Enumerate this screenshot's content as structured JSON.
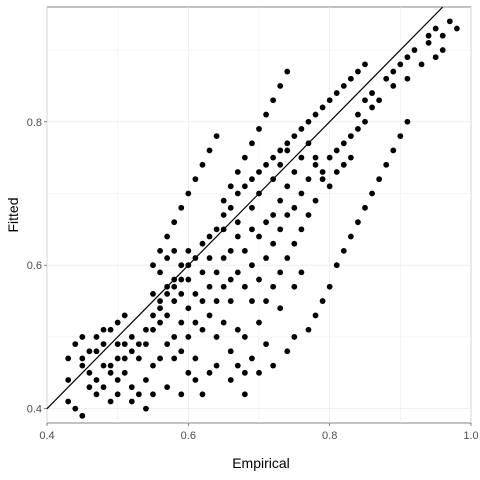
{
  "chart_data": {
    "type": "scatter",
    "xlabel": "Empirical",
    "ylabel": "Fitted",
    "xlim": [
      0.4,
      1.0
    ],
    "ylim": [
      0.38,
      0.96
    ],
    "x_ticks": [
      0.4,
      0.6,
      0.8,
      1.0
    ],
    "x_tick_labels": [
      "0.4",
      "0.6",
      "0.8",
      "1.0"
    ],
    "y_ticks": [
      0.4,
      0.6,
      0.8
    ],
    "y_tick_labels": [
      "0.4",
      "0.6",
      "0.8"
    ],
    "grid": true,
    "reference_line": {
      "type": "identity",
      "slope": 1,
      "intercept": 0
    },
    "point_color": "#000000",
    "points": [
      [
        0.43,
        0.41
      ],
      [
        0.44,
        0.4
      ],
      [
        0.45,
        0.39
      ],
      [
        0.43,
        0.44
      ],
      [
        0.45,
        0.47
      ],
      [
        0.46,
        0.43
      ],
      [
        0.47,
        0.42
      ],
      [
        0.48,
        0.43
      ],
      [
        0.49,
        0.41
      ],
      [
        0.43,
        0.47
      ],
      [
        0.44,
        0.49
      ],
      [
        0.45,
        0.5
      ],
      [
        0.46,
        0.48
      ],
      [
        0.47,
        0.5
      ],
      [
        0.48,
        0.49
      ],
      [
        0.49,
        0.51
      ],
      [
        0.5,
        0.52
      ],
      [
        0.48,
        0.51
      ],
      [
        0.47,
        0.48
      ],
      [
        0.45,
        0.46
      ],
      [
        0.5,
        0.47
      ],
      [
        0.51,
        0.45
      ],
      [
        0.51,
        0.49
      ],
      [
        0.5,
        0.44
      ],
      [
        0.49,
        0.46
      ],
      [
        0.51,
        0.53
      ],
      [
        0.52,
        0.5
      ],
      [
        0.52,
        0.43
      ],
      [
        0.53,
        0.42
      ],
      [
        0.53,
        0.47
      ],
      [
        0.54,
        0.44
      ],
      [
        0.54,
        0.49
      ],
      [
        0.55,
        0.51
      ],
      [
        0.55,
        0.46
      ],
      [
        0.56,
        0.47
      ],
      [
        0.56,
        0.52
      ],
      [
        0.57,
        0.49
      ],
      [
        0.57,
        0.53
      ],
      [
        0.58,
        0.55
      ],
      [
        0.58,
        0.47
      ],
      [
        0.56,
        0.55
      ],
      [
        0.55,
        0.56
      ],
      [
        0.56,
        0.59
      ],
      [
        0.57,
        0.57
      ],
      [
        0.58,
        0.58
      ],
      [
        0.57,
        0.61
      ],
      [
        0.58,
        0.62
      ],
      [
        0.59,
        0.6
      ],
      [
        0.59,
        0.56
      ],
      [
        0.59,
        0.52
      ],
      [
        0.58,
        0.5
      ],
      [
        0.59,
        0.48
      ],
      [
        0.6,
        0.58
      ],
      [
        0.6,
        0.54
      ],
      [
        0.6,
        0.5
      ],
      [
        0.6,
        0.62
      ],
      [
        0.61,
        0.56
      ],
      [
        0.61,
        0.52
      ],
      [
        0.61,
        0.47
      ],
      [
        0.62,
        0.55
      ],
      [
        0.62,
        0.59
      ],
      [
        0.62,
        0.51
      ],
      [
        0.6,
        0.45
      ],
      [
        0.59,
        0.42
      ],
      [
        0.62,
        0.42
      ],
      [
        0.63,
        0.57
      ],
      [
        0.63,
        0.53
      ],
      [
        0.63,
        0.61
      ],
      [
        0.64,
        0.59
      ],
      [
        0.64,
        0.55
      ],
      [
        0.64,
        0.5
      ],
      [
        0.65,
        0.52
      ],
      [
        0.65,
        0.57
      ],
      [
        0.65,
        0.61
      ],
      [
        0.65,
        0.65
      ],
      [
        0.66,
        0.62
      ],
      [
        0.66,
        0.58
      ],
      [
        0.66,
        0.55
      ],
      [
        0.66,
        0.48
      ],
      [
        0.67,
        0.51
      ],
      [
        0.67,
        0.59
      ],
      [
        0.67,
        0.64
      ],
      [
        0.67,
        0.66
      ],
      [
        0.68,
        0.62
      ],
      [
        0.68,
        0.57
      ],
      [
        0.68,
        0.5
      ],
      [
        0.68,
        0.45
      ],
      [
        0.69,
        0.47
      ],
      [
        0.69,
        0.55
      ],
      [
        0.69,
        0.6
      ],
      [
        0.69,
        0.65
      ],
      [
        0.69,
        0.68
      ],
      [
        0.7,
        0.64
      ],
      [
        0.7,
        0.58
      ],
      [
        0.7,
        0.52
      ],
      [
        0.7,
        0.7
      ],
      [
        0.71,
        0.66
      ],
      [
        0.71,
        0.61
      ],
      [
        0.71,
        0.55
      ],
      [
        0.71,
        0.49
      ],
      [
        0.72,
        0.72
      ],
      [
        0.72,
        0.67
      ],
      [
        0.72,
        0.63
      ],
      [
        0.72,
        0.57
      ],
      [
        0.73,
        0.69
      ],
      [
        0.73,
        0.74
      ],
      [
        0.73,
        0.65
      ],
      [
        0.73,
        0.59
      ],
      [
        0.73,
        0.54
      ],
      [
        0.74,
        0.71
      ],
      [
        0.74,
        0.76
      ],
      [
        0.74,
        0.67
      ],
      [
        0.74,
        0.61
      ],
      [
        0.75,
        0.73
      ],
      [
        0.75,
        0.68
      ],
      [
        0.75,
        0.63
      ],
      [
        0.75,
        0.57
      ],
      [
        0.76,
        0.75
      ],
      [
        0.76,
        0.7
      ],
      [
        0.76,
        0.65
      ],
      [
        0.76,
        0.59
      ],
      [
        0.77,
        0.72
      ],
      [
        0.77,
        0.77
      ],
      [
        0.77,
        0.67
      ],
      [
        0.78,
        0.74
      ],
      [
        0.78,
        0.69
      ],
      [
        0.78,
        0.75
      ],
      [
        0.79,
        0.72
      ],
      [
        0.79,
        0.73
      ],
      [
        0.8,
        0.75
      ],
      [
        0.8,
        0.71
      ],
      [
        0.81,
        0.76
      ],
      [
        0.81,
        0.73
      ],
      [
        0.82,
        0.74
      ],
      [
        0.82,
        0.77
      ],
      [
        0.83,
        0.78
      ],
      [
        0.83,
        0.75
      ],
      [
        0.84,
        0.79
      ],
      [
        0.84,
        0.81
      ],
      [
        0.85,
        0.8
      ],
      [
        0.85,
        0.83
      ],
      [
        0.86,
        0.82
      ],
      [
        0.86,
        0.84
      ],
      [
        0.87,
        0.83
      ],
      [
        0.88,
        0.86
      ],
      [
        0.89,
        0.85
      ],
      [
        0.89,
        0.87
      ],
      [
        0.9,
        0.88
      ],
      [
        0.91,
        0.89
      ],
      [
        0.91,
        0.86
      ],
      [
        0.92,
        0.9
      ],
      [
        0.93,
        0.88
      ],
      [
        0.94,
        0.91
      ],
      [
        0.95,
        0.93
      ],
      [
        0.95,
        0.89
      ],
      [
        0.96,
        0.92
      ],
      [
        0.97,
        0.94
      ],
      [
        0.98,
        0.93
      ],
      [
        0.96,
        0.9
      ],
      [
        0.94,
        0.92
      ],
      [
        0.5,
        0.42
      ],
      [
        0.52,
        0.41
      ],
      [
        0.54,
        0.4
      ],
      [
        0.55,
        0.42
      ],
      [
        0.57,
        0.43
      ],
      [
        0.61,
        0.44
      ],
      [
        0.63,
        0.45
      ],
      [
        0.64,
        0.46
      ],
      [
        0.66,
        0.44
      ],
      [
        0.67,
        0.46
      ],
      [
        0.68,
        0.42
      ],
      [
        0.7,
        0.45
      ],
      [
        0.72,
        0.46
      ],
      [
        0.74,
        0.48
      ],
      [
        0.75,
        0.5
      ],
      [
        0.77,
        0.51
      ],
      [
        0.78,
        0.53
      ],
      [
        0.79,
        0.55
      ],
      [
        0.8,
        0.57
      ],
      [
        0.81,
        0.6
      ],
      [
        0.82,
        0.62
      ],
      [
        0.83,
        0.64
      ],
      [
        0.84,
        0.66
      ],
      [
        0.85,
        0.68
      ],
      [
        0.86,
        0.7
      ],
      [
        0.87,
        0.72
      ],
      [
        0.88,
        0.74
      ],
      [
        0.89,
        0.76
      ],
      [
        0.9,
        0.78
      ],
      [
        0.91,
        0.8
      ],
      [
        0.55,
        0.6
      ],
      [
        0.56,
        0.62
      ],
      [
        0.57,
        0.64
      ],
      [
        0.58,
        0.66
      ],
      [
        0.59,
        0.68
      ],
      [
        0.6,
        0.7
      ],
      [
        0.61,
        0.72
      ],
      [
        0.62,
        0.74
      ],
      [
        0.63,
        0.76
      ],
      [
        0.64,
        0.78
      ],
      [
        0.65,
        0.69
      ],
      [
        0.66,
        0.71
      ],
      [
        0.67,
        0.73
      ],
      [
        0.68,
        0.75
      ],
      [
        0.69,
        0.77
      ],
      [
        0.7,
        0.79
      ],
      [
        0.71,
        0.81
      ],
      [
        0.72,
        0.83
      ],
      [
        0.73,
        0.85
      ],
      [
        0.74,
        0.87
      ],
      [
        0.46,
        0.45
      ],
      [
        0.47,
        0.44
      ],
      [
        0.48,
        0.46
      ],
      [
        0.49,
        0.45
      ],
      [
        0.5,
        0.49
      ],
      [
        0.51,
        0.47
      ],
      [
        0.52,
        0.48
      ],
      [
        0.53,
        0.49
      ],
      [
        0.54,
        0.51
      ],
      [
        0.55,
        0.53
      ],
      [
        0.56,
        0.54
      ],
      [
        0.57,
        0.56
      ],
      [
        0.58,
        0.57
      ],
      [
        0.59,
        0.58
      ],
      [
        0.6,
        0.6
      ],
      [
        0.61,
        0.61
      ],
      [
        0.62,
        0.63
      ],
      [
        0.63,
        0.64
      ],
      [
        0.64,
        0.65
      ],
      [
        0.65,
        0.67
      ],
      [
        0.66,
        0.68
      ],
      [
        0.67,
        0.7
      ],
      [
        0.68,
        0.71
      ],
      [
        0.69,
        0.72
      ],
      [
        0.7,
        0.73
      ],
      [
        0.71,
        0.74
      ],
      [
        0.72,
        0.75
      ],
      [
        0.73,
        0.76
      ],
      [
        0.74,
        0.77
      ],
      [
        0.75,
        0.78
      ],
      [
        0.76,
        0.79
      ],
      [
        0.77,
        0.8
      ],
      [
        0.78,
        0.81
      ],
      [
        0.79,
        0.82
      ],
      [
        0.8,
        0.83
      ],
      [
        0.81,
        0.84
      ],
      [
        0.82,
        0.85
      ],
      [
        0.83,
        0.86
      ],
      [
        0.84,
        0.87
      ],
      [
        0.85,
        0.88
      ]
    ]
  }
}
